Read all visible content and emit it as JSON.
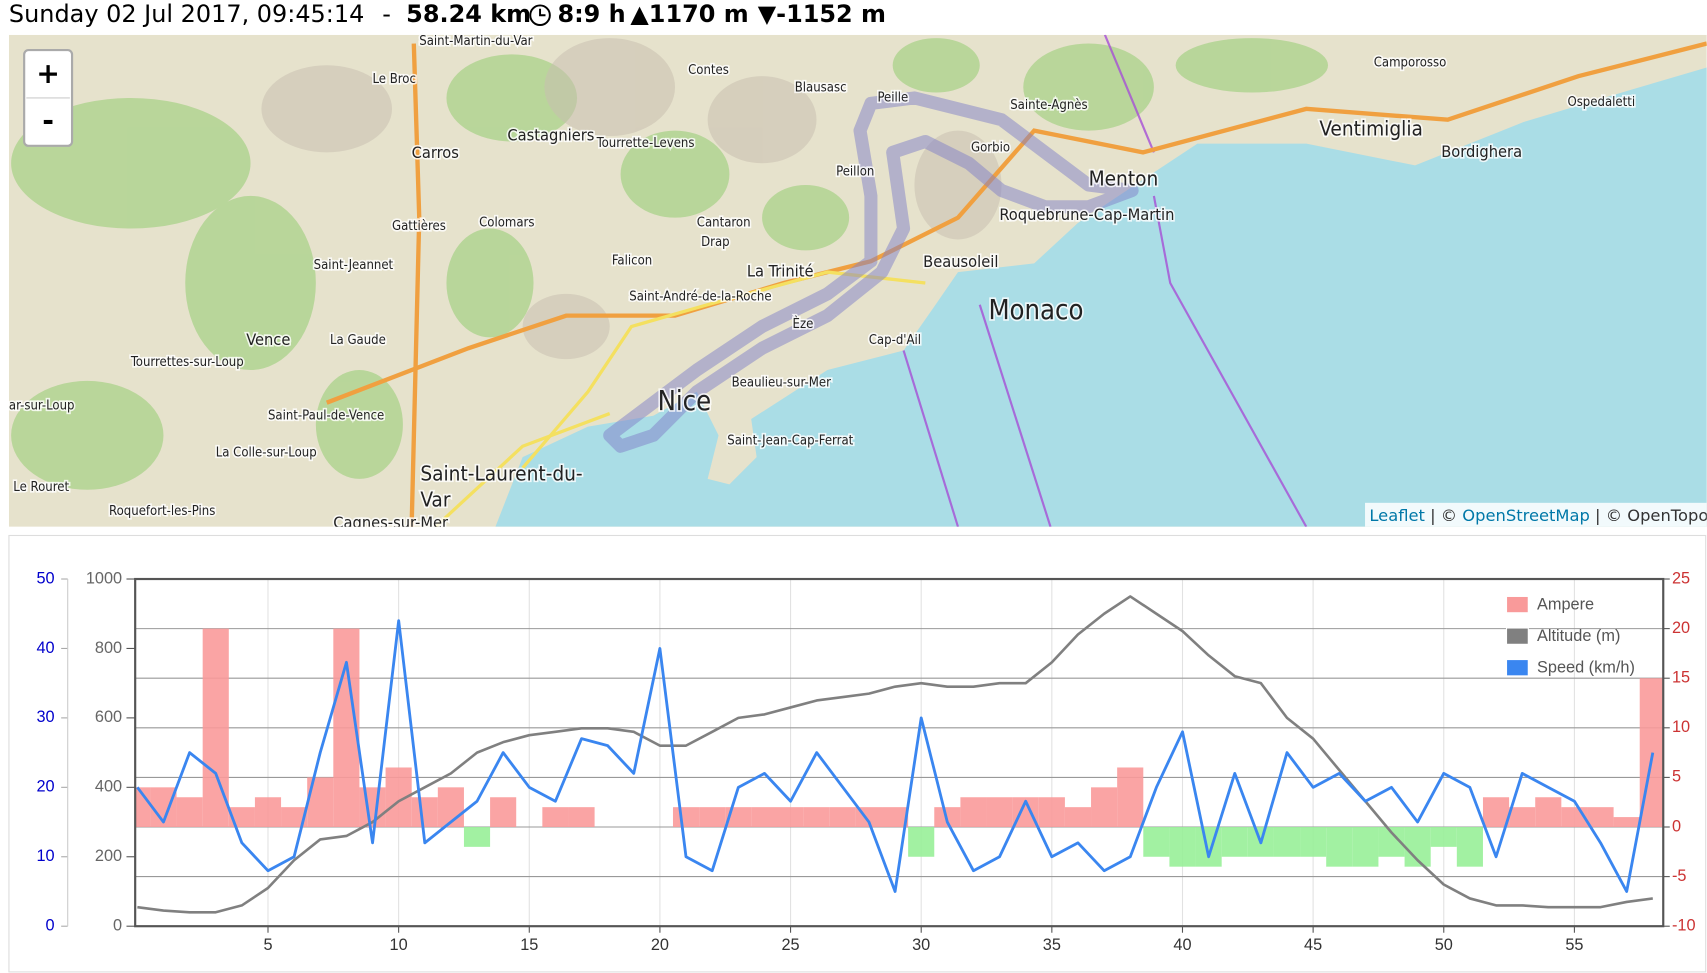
{
  "header": {
    "date": "Sunday 02 Jul 2017, 09:45:14",
    "separator": "-",
    "distance": "58.24 km",
    "duration": "8:9 h",
    "ascent": "▲1170 m",
    "descent": "▼-1152 m"
  },
  "map": {
    "zoom_in": "+",
    "zoom_out": "-",
    "labels": [
      "Saint-Martin-du-Var",
      "Le Broc",
      "Contes",
      "Blausasc",
      "Camporosso",
      "Ospedaletti",
      "Sainte-Agnès",
      "Peille",
      "Castagniers",
      "Tourrette-Levens",
      "Carros",
      "Gorbio",
      "Ventimiglia",
      "Bordighera",
      "Menton",
      "Peillon",
      "Roquebrune-Cap-Martin",
      "Colomars",
      "Gattières",
      "Cantaron",
      "Drap",
      "Falicon",
      "Beausoleil",
      "La Trinité",
      "Saint-Jeannet",
      "Saint-André-de-la-Roche",
      "Monaco",
      "Vence",
      "La Gaude",
      "Èze",
      "Cap-d'Ail",
      "Tourrettes-sur-Loup",
      "Beaulieu-sur-Mer",
      "Nice",
      "ar-sur-Loup",
      "Saint-Paul-de-Vence",
      "Saint-Jean-Cap-Ferrat",
      "La Colle-sur-Loup",
      "Saint-Laurent-du-",
      "Var",
      "Le Rouret",
      "Roquefort-les-Pins",
      "Cagnes-sur-Mer"
    ],
    "attribution": [
      "Leaflet",
      " | © ",
      "OpenStreetMap",
      " | © OpenTopoMa"
    ]
  },
  "chart_data": {
    "type": "line",
    "x": [
      0,
      1,
      2,
      3,
      4,
      5,
      6,
      7,
      8,
      9,
      10,
      11,
      12,
      13,
      14,
      15,
      16,
      17,
      18,
      19,
      20,
      21,
      22,
      23,
      24,
      25,
      26,
      27,
      28,
      29,
      30,
      31,
      32,
      33,
      34,
      35,
      36,
      37,
      38,
      39,
      40,
      41,
      42,
      43,
      44,
      45,
      46,
      47,
      48,
      49,
      50,
      51,
      52,
      53,
      54,
      55,
      56,
      57,
      58
    ],
    "xlim": [
      0,
      58.4
    ],
    "xticks": [
      5,
      10,
      15,
      20,
      25,
      30,
      35,
      40,
      45,
      50,
      55
    ],
    "ylim": [
      0,
      50
    ],
    "yticks": [
      0,
      10,
      20,
      30,
      40,
      50
    ],
    "ycolor": "#0000cc",
    "y2lim": [
      0,
      1000
    ],
    "y2ticks": [
      0,
      200,
      400,
      600,
      800,
      1000
    ],
    "y2color": "#666666",
    "y3lim": [
      -10,
      25
    ],
    "y3ticks": [
      -10,
      -5,
      0,
      5,
      10,
      15,
      20,
      25
    ],
    "y3color": "#cc3333",
    "grid": true,
    "legend": "top-right",
    "series": [
      {
        "name": "Ampere",
        "color": "#f99a9a",
        "negative_color": "#98f098",
        "axis": "y3",
        "kind": "area",
        "values": [
          4,
          4,
          3,
          20,
          2,
          3,
          2,
          5,
          20,
          4,
          6,
          3,
          4,
          -2,
          3,
          0,
          2,
          2,
          0,
          0,
          0,
          2,
          2,
          2,
          2,
          2,
          2,
          2,
          2,
          2,
          -3,
          2,
          3,
          3,
          3,
          3,
          2,
          4,
          6,
          -3,
          -4,
          -4,
          -3,
          -3,
          -3,
          -3,
          -4,
          -4,
          -3,
          -4,
          -2,
          -4,
          3,
          2,
          3,
          2,
          2,
          1,
          15
        ]
      },
      {
        "name": "Altitude (m)",
        "color": "#808080",
        "axis": "y2",
        "kind": "line",
        "values": [
          55,
          45,
          40,
          40,
          60,
          110,
          190,
          250,
          260,
          300,
          360,
          400,
          440,
          500,
          530,
          550,
          560,
          570,
          570,
          560,
          520,
          520,
          560,
          600,
          610,
          630,
          650,
          660,
          670,
          690,
          700,
          690,
          690,
          700,
          700,
          760,
          840,
          900,
          950,
          900,
          850,
          780,
          720,
          700,
          600,
          540,
          450,
          360,
          270,
          190,
          120,
          80,
          60,
          60,
          55,
          55,
          55,
          70,
          80
        ]
      },
      {
        "name": "Speed (km/h)",
        "color": "#3a86f0",
        "axis": "y",
        "kind": "line",
        "values": [
          20,
          15,
          25,
          22,
          12,
          8,
          10,
          25,
          38,
          12,
          44,
          12,
          15,
          18,
          25,
          20,
          18,
          27,
          26,
          22,
          40,
          10,
          8,
          20,
          22,
          18,
          25,
          20,
          15,
          5,
          30,
          15,
          8,
          10,
          18,
          10,
          12,
          8,
          10,
          20,
          28,
          10,
          22,
          12,
          25,
          20,
          22,
          18,
          20,
          15,
          22,
          20,
          10,
          22,
          20,
          18,
          12,
          5,
          25
        ]
      }
    ]
  }
}
